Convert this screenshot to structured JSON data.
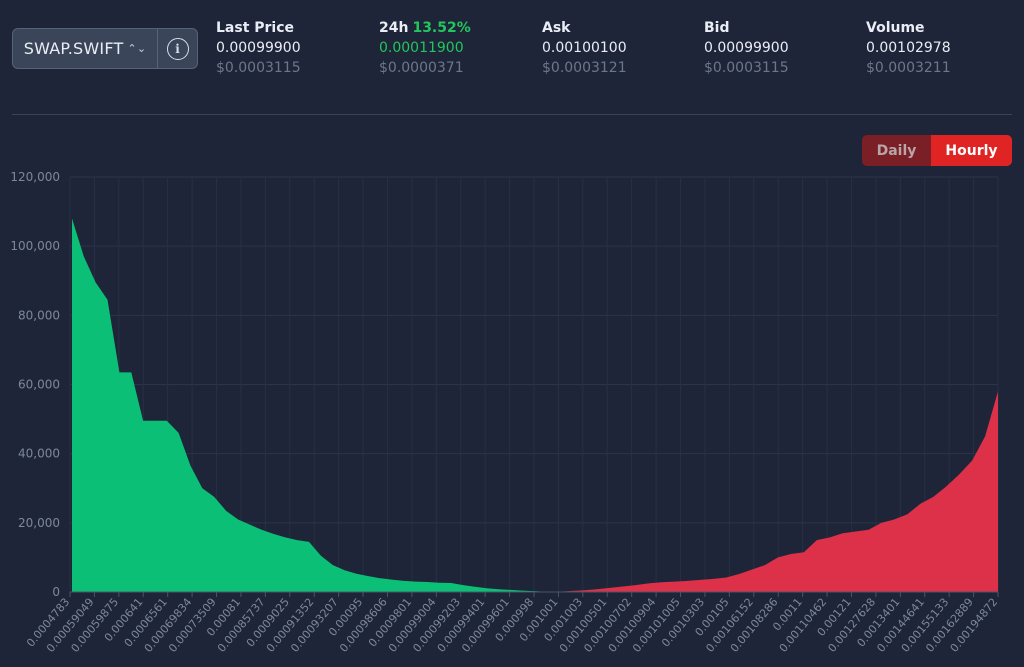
{
  "pair": {
    "name": "SWAP.SWIFT",
    "sort_icon": "updown-chevron-icon",
    "info_icon": "i"
  },
  "stats": [
    {
      "key": "last-price",
      "label": "Last Price",
      "pct": "",
      "value": "0.00099900",
      "usd": "$0.0003115",
      "value_color": "#e9edf5"
    },
    {
      "key": "24h",
      "label": "24h",
      "pct": "13.52%",
      "value": "0.00011900",
      "usd": "$0.0000371",
      "value_color": "#22c55e"
    },
    {
      "key": "ask",
      "label": "Ask",
      "pct": "",
      "value": "0.00100100",
      "usd": "$0.0003121",
      "value_color": "#e9edf5"
    },
    {
      "key": "bid",
      "label": "Bid",
      "pct": "",
      "value": "0.00099900",
      "usd": "$0.0003115",
      "value_color": "#e9edf5"
    },
    {
      "key": "volume",
      "label": "Volume",
      "pct": "",
      "value": "0.00102978",
      "usd": "$0.0003211",
      "value_color": "#e9edf5"
    }
  ],
  "toggle": {
    "daily": "Daily",
    "hourly": "Hourly",
    "active": "Hourly"
  },
  "colors": {
    "background": "#1e2538",
    "bid_area": "#0cbf77",
    "ask_area": "#dd3049",
    "positive": "#22c55e",
    "accent": "#e02424"
  },
  "chart_data": {
    "type": "area",
    "ylim": [
      0,
      120000
    ],
    "y_ticks": [
      "0",
      "20,000",
      "40,000",
      "60,000",
      "80,000",
      "100,000",
      "120,000"
    ],
    "x_ticks": [
      "0.0004783",
      "0.00059049",
      "0.00059875",
      "0.000641",
      "0.0006561",
      "0.00069834",
      "0.00073509",
      "0.00081",
      "0.00085737",
      "0.0009025",
      "0.00091352",
      "0.00093207",
      "0.00095",
      "0.00098606",
      "0.0009801",
      "0.00099004",
      "0.00099203",
      "0.00099401",
      "0.00099601",
      "0.000998",
      "0.001001",
      "0.001003",
      "0.00100501",
      "0.00100702",
      "0.00100904",
      "0.00101005",
      "0.0010303",
      "0.00105",
      "0.00106152",
      "0.00108286",
      "0.0011",
      "0.00110462",
      "0.00121",
      "0.00127628",
      "0.0013401",
      "0.00144641",
      "0.00155133",
      "0.00162889",
      "0.00194872"
    ],
    "series": [
      {
        "name": "",
        "side": "bids",
        "values": [
          108000,
          97000,
          89500,
          84500,
          63500,
          63500,
          49500,
          49500,
          49500,
          46000,
          36500,
          30000,
          27500,
          23500,
          21000,
          19500,
          18000,
          16800,
          15800,
          15000,
          14500,
          10500,
          7800,
          6300,
          5300,
          4600,
          4000,
          3600,
          3200,
          3000,
          2900,
          2700,
          2600,
          2000,
          1500,
          1100,
          800,
          600,
          400,
          250,
          100
        ]
      },
      {
        "name": "",
        "side": "asks",
        "values": [
          100,
          300,
          500,
          800,
          1200,
          1600,
          2000,
          2500,
          2800,
          3000,
          3200,
          3500,
          3800,
          4200,
          5200,
          6500,
          7800,
          10000,
          11000,
          11500,
          15000,
          15800,
          17000,
          17500,
          18000,
          20000,
          21000,
          22500,
          25500,
          27500,
          30500,
          34000,
          38000,
          45000,
          58000
        ]
      }
    ]
  }
}
